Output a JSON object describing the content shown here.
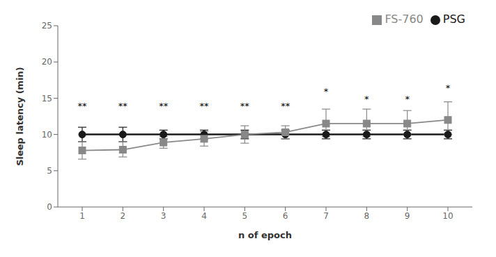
{
  "chart_data": {
    "type": "line",
    "xlabel": "n of epoch",
    "ylabel": "Sleep latency (min)",
    "x": [
      1,
      2,
      3,
      4,
      5,
      6,
      7,
      8,
      9,
      10
    ],
    "series": [
      {
        "name": "PSG",
        "color": "#1a1a1a",
        "marker": "circle",
        "values": [
          10.0,
          10.0,
          10.0,
          10.0,
          10.0,
          10.0,
          10.0,
          10.0,
          10.0,
          10.0
        ],
        "yerr_lo": [
          1.0,
          1.0,
          0.6,
          0.6,
          0.6,
          0.6,
          0.6,
          0.6,
          0.6,
          0.6
        ],
        "yerr_hi": [
          1.0,
          1.0,
          0.6,
          0.6,
          0.6,
          0.6,
          0.6,
          0.6,
          0.6,
          0.6
        ]
      },
      {
        "name": "FS-760",
        "color": "#888888",
        "marker": "square",
        "values": [
          7.8,
          7.9,
          8.9,
          9.4,
          10.0,
          10.3,
          11.5,
          11.5,
          11.5,
          12.0
        ],
        "yerr_lo": [
          1.2,
          1.0,
          0.8,
          1.0,
          1.2,
          0.9,
          1.8,
          1.8,
          1.5,
          2.0
        ],
        "yerr_hi": [
          1.2,
          1.1,
          0.8,
          1.0,
          1.2,
          0.9,
          2.0,
          2.0,
          1.8,
          2.5
        ]
      }
    ],
    "annotations": [
      {
        "x": 1,
        "y": 13.0,
        "text": "**"
      },
      {
        "x": 2,
        "y": 13.0,
        "text": "**"
      },
      {
        "x": 3,
        "y": 13.0,
        "text": "**"
      },
      {
        "x": 4,
        "y": 13.0,
        "text": "**"
      },
      {
        "x": 5,
        "y": 13.0,
        "text": "**"
      },
      {
        "x": 6,
        "y": 13.0,
        "text": "**"
      },
      {
        "x": 7,
        "y": 15.0,
        "text": "*"
      },
      {
        "x": 8,
        "y": 14.0,
        "text": "*"
      },
      {
        "x": 9,
        "y": 14.0,
        "text": "*"
      },
      {
        "x": 10,
        "y": 15.5,
        "text": "*"
      }
    ],
    "xlim": [
      0.4,
      10.6
    ],
    "xticks": [
      1,
      2,
      3,
      4,
      5,
      6,
      7,
      8,
      9,
      10
    ],
    "ylim": [
      0,
      25
    ],
    "yticks": [
      0,
      5,
      10,
      15,
      20,
      25
    ],
    "grid": false,
    "legend": "upper right"
  }
}
